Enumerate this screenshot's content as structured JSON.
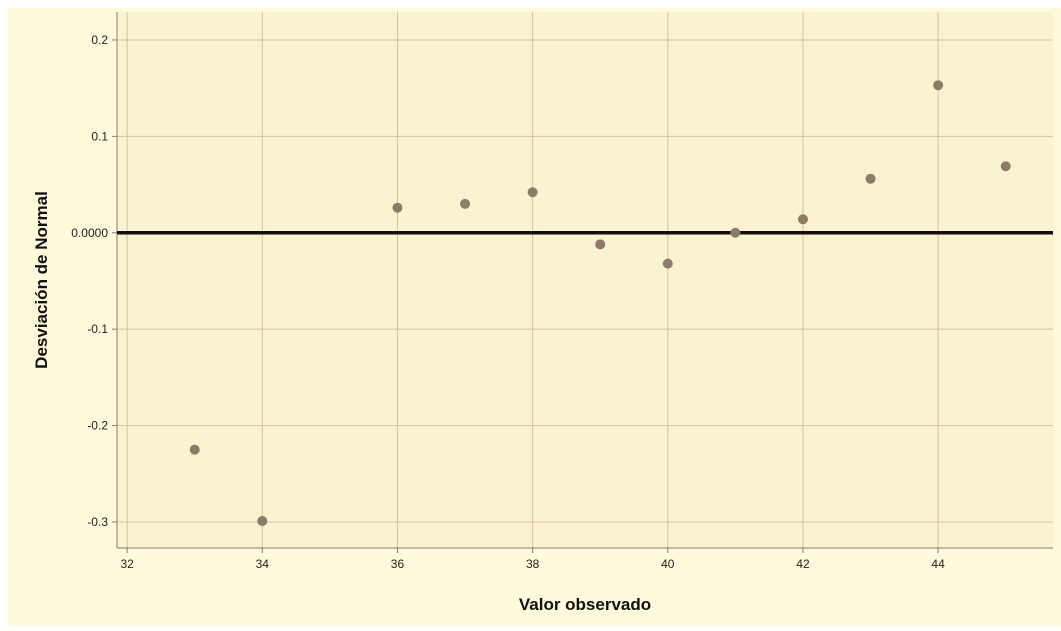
{
  "chart_data": {
    "type": "scatter",
    "title": "",
    "xlabel": "Valor observado",
    "ylabel": "Desviación de Normal",
    "xlim": [
      31.85,
      45.7
    ],
    "ylim": [
      -0.327,
      0.229
    ],
    "x_ticks": [
      32,
      34,
      36,
      38,
      40,
      42,
      44
    ],
    "x_tick_labels": [
      "32",
      "34",
      "36",
      "38",
      "40",
      "42",
      "44"
    ],
    "y_ticks": [
      0.2,
      0.1,
      0.0,
      -0.1,
      -0.2,
      -0.3
    ],
    "y_tick_labels": [
      "0.2",
      "0.1",
      "0.0000",
      "-0.1",
      "-0.2",
      "-0.3"
    ],
    "grid": true,
    "reference_line_y": 0,
    "points": [
      {
        "x": 33,
        "y": -0.225
      },
      {
        "x": 34,
        "y": -0.299
      },
      {
        "x": 36,
        "y": 0.026
      },
      {
        "x": 37,
        "y": 0.03
      },
      {
        "x": 38,
        "y": 0.042
      },
      {
        "x": 39,
        "y": -0.012
      },
      {
        "x": 40,
        "y": -0.032
      },
      {
        "x": 41,
        "y": 0.0
      },
      {
        "x": 42,
        "y": 0.014
      },
      {
        "x": 43,
        "y": 0.056
      },
      {
        "x": 44,
        "y": 0.153
      },
      {
        "x": 45,
        "y": 0.069
      }
    ],
    "colors": {
      "background": "#FFFADC",
      "plot_background": "#FAF3CF",
      "grid": "#D9BFA5",
      "axis": "#8A7A6A",
      "reference_line": "#111111",
      "marker": "#8C7A6B"
    }
  }
}
